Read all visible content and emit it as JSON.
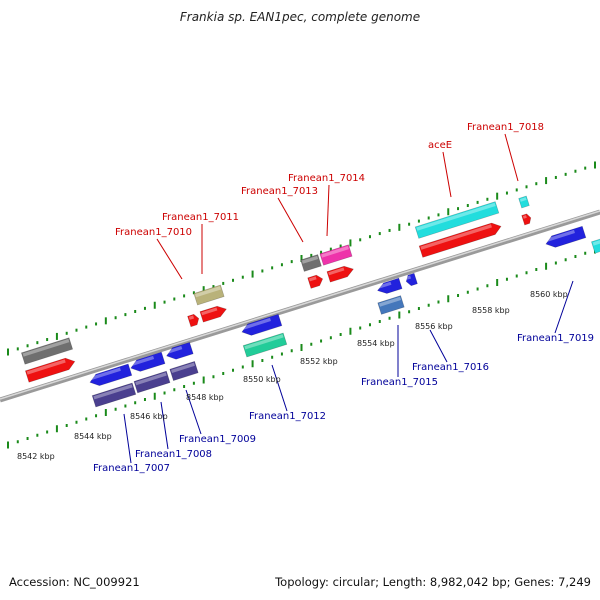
{
  "title": "Frankia sp. EAN1pec, complete genome",
  "footer": {
    "accession": "Accession: NC_009921",
    "topology": "Topology: circular; Length: 8,982,042 bp; Genes: 7,249"
  },
  "colors": {
    "forward_label": "#cc0000",
    "reverse_label": "#000099",
    "tick": "#1a8a1a",
    "backbone": "#888888"
  },
  "scale_labels": [
    {
      "id": "kbp-8542",
      "text": "8542 kbp"
    },
    {
      "id": "kbp-8544",
      "text": "8544 kbp"
    },
    {
      "id": "kbp-8546",
      "text": "8546 kbp"
    },
    {
      "id": "kbp-8548",
      "text": "8548 kbp"
    },
    {
      "id": "kbp-8550",
      "text": "8550 kbp"
    },
    {
      "id": "kbp-8552",
      "text": "8552 kbp"
    },
    {
      "id": "kbp-8554",
      "text": "8554 kbp"
    },
    {
      "id": "kbp-8556",
      "text": "8556 kbp"
    },
    {
      "id": "kbp-8558",
      "text": "8558 kbp"
    },
    {
      "id": "kbp-8560",
      "text": "8560 kbp"
    }
  ],
  "forward_genes": [
    {
      "id": "franean1-7010",
      "label": "Franean1_7010"
    },
    {
      "id": "franean1-7011",
      "label": "Franean1_7011"
    },
    {
      "id": "franean1-7013",
      "label": "Franean1_7013"
    },
    {
      "id": "franean1-7014",
      "label": "Franean1_7014"
    },
    {
      "id": "acee",
      "label": "aceE"
    },
    {
      "id": "franean1-7018",
      "label": "Franean1_7018"
    }
  ],
  "reverse_genes": [
    {
      "id": "franean1-7007",
      "label": "Franean1_7007"
    },
    {
      "id": "franean1-7008",
      "label": "Franean1_7008"
    },
    {
      "id": "franean1-7009",
      "label": "Franean1_7009"
    },
    {
      "id": "franean1-7012",
      "label": "Franean1_7012"
    },
    {
      "id": "franean1-7015",
      "label": "Franean1_7015"
    },
    {
      "id": "franean1-7016",
      "label": "Franean1_7016"
    },
    {
      "id": "franean1-7019",
      "label": "Franean1_7019"
    }
  ]
}
